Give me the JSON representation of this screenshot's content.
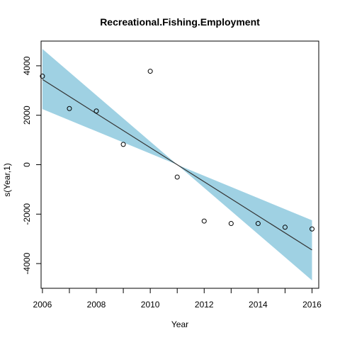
{
  "chart_data": {
    "type": "line",
    "title": "Recreational.Fishing.Employment",
    "xlabel": "Year",
    "ylabel": "s(Year,1)",
    "xlim": [
      2005.95,
      2016.25
    ],
    "ylim": [
      -5000,
      5000
    ],
    "x_ticks": [
      2006,
      2008,
      2010,
      2012,
      2014,
      2016
    ],
    "y_ticks": [
      -4000,
      -2000,
      0,
      2000,
      4000
    ],
    "x_tick_labels": [
      "2006",
      "2008",
      "2010",
      "2012",
      "2014",
      "2016"
    ],
    "y_tick_labels": [
      "-4000",
      "-2000",
      "0",
      "2000",
      "4000"
    ],
    "x_minor_ticks": [
      2007,
      2009,
      2011,
      2013,
      2015
    ],
    "grid": false,
    "band_color": "#9fd1e3",
    "line_color": "#333333",
    "fit": {
      "x": [
        2006,
        2016
      ],
      "y": [
        3450,
        -3450
      ]
    },
    "band": {
      "x": [
        2006,
        2011,
        2016
      ],
      "upper": [
        4680,
        0,
        -2250
      ],
      "lower": [
        2250,
        0,
        -4680
      ]
    },
    "points": {
      "x": [
        2006,
        2007,
        2008,
        2009,
        2010,
        2011,
        2012,
        2013,
        2014,
        2015,
        2016
      ],
      "y": [
        3580,
        2270,
        2170,
        820,
        3780,
        -500,
        -2280,
        -2380,
        -2380,
        -2530,
        -2600
      ]
    }
  }
}
